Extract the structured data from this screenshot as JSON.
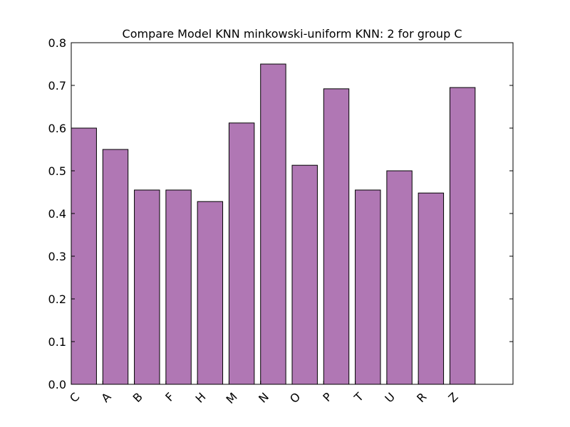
{
  "chart_data": {
    "type": "bar",
    "title": "Compare Model KNN minkowski-uniform KNN: 2 for group C",
    "xlabel": "",
    "ylabel": "",
    "categories": [
      "C",
      "A",
      "B",
      "F",
      "H",
      "M",
      "N",
      "O",
      "P",
      "T",
      "U",
      "R",
      "Z"
    ],
    "values": [
      0.6,
      0.55,
      0.455,
      0.455,
      0.428,
      0.612,
      0.75,
      0.513,
      0.692,
      0.455,
      0.5,
      0.448,
      0.695
    ],
    "ylim": [
      0,
      0.8
    ],
    "yticks": [
      "0.0",
      "0.1",
      "0.2",
      "0.3",
      "0.4",
      "0.5",
      "0.6",
      "0.7",
      "0.8"
    ],
    "bar_color": "#b077b4",
    "edge_color": "#000000",
    "grid": false,
    "legend": "none"
  }
}
